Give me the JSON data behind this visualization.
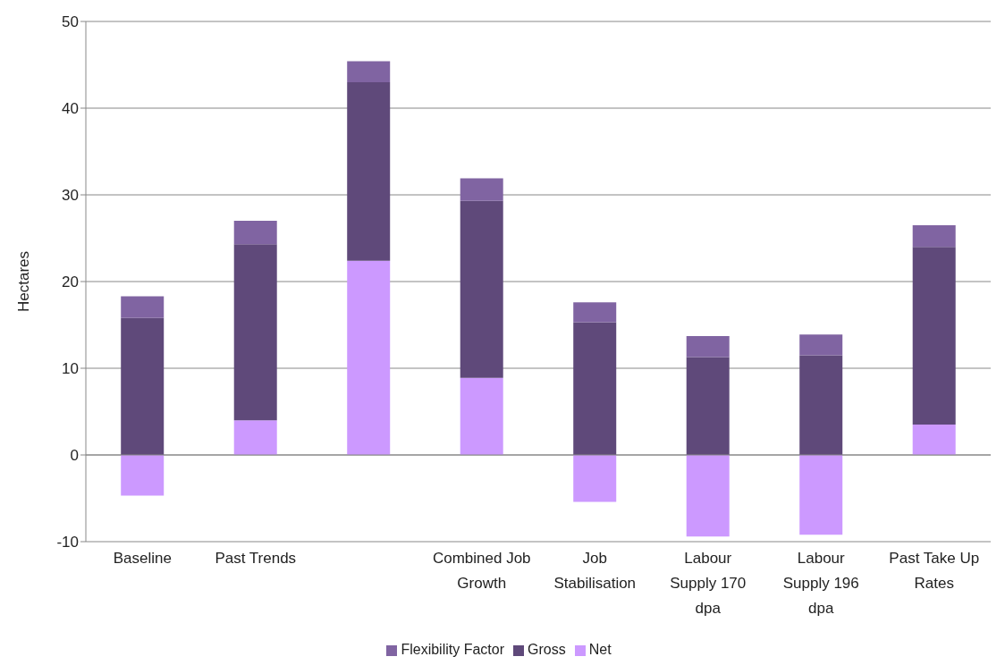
{
  "chart_data": {
    "type": "bar",
    "ylabel": "Hectares",
    "stacked": true,
    "categories": [
      "Baseline",
      "Past Trends",
      null,
      "Combined Job Growth",
      "Job Stabilisation",
      "Labour Supply 170 dpa",
      "Labour Supply 196 dpa",
      "Past Take Up Rates"
    ],
    "series": [
      {
        "name": "Net",
        "color": "#cc99ff",
        "values": [
          -4.7,
          4.0,
          22.4,
          8.9,
          -5.4,
          -9.4,
          -9.2,
          3.5
        ]
      },
      {
        "name": "Gross",
        "color": "#5f497a",
        "values": [
          15.8,
          20.3,
          20.6,
          20.4,
          15.3,
          11.3,
          11.5,
          20.5
        ]
      },
      {
        "name": "Flexibility Factor",
        "color": "#8064a2",
        "values": [
          2.5,
          2.7,
          2.4,
          2.6,
          2.3,
          2.4,
          2.4,
          2.5
        ]
      }
    ],
    "ylim": [
      -10,
      50
    ],
    "yticks": [
      -10,
      0,
      10,
      20,
      30,
      40,
      50
    ],
    "grid": "y",
    "legend": "bottom"
  }
}
